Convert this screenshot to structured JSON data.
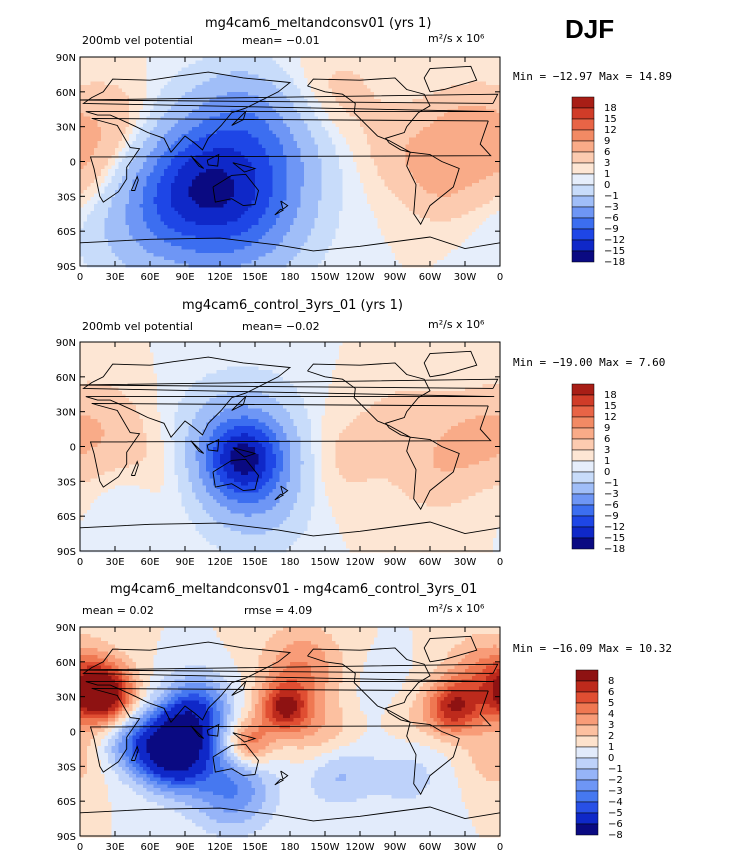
{
  "season": "DJF",
  "palette_full": [
    "#0a0a82",
    "#0f28c8",
    "#1e46e6",
    "#3c6ef0",
    "#6e96f5",
    "#a0bef8",
    "#c8dcfa",
    "#e6eefb",
    "#fde6d4",
    "#fccbb0",
    "#f9ab88",
    "#f28a64",
    "#e86446",
    "#d03c28",
    "#a81e16"
  ],
  "palette_diff": [
    "#0a0a82",
    "#0f28c8",
    "#2850e6",
    "#4678f0",
    "#6e96f5",
    "#96b4f8",
    "#bed2fa",
    "#e2ebfb",
    "#fde2cc",
    "#fcc0a0",
    "#f89c78",
    "#ef7852",
    "#e04e32",
    "#bd2a1c",
    "#8e1212"
  ],
  "colorbar_full_labels": [
    "18",
    "15",
    "12",
    "9",
    "6",
    "3",
    "1",
    "0",
    "-1",
    "-3",
    "-6",
    "-9",
    "-12",
    "-15",
    "-18"
  ],
  "colorbar_diff_labels": [
    "8",
    "6",
    "5",
    "4",
    "3",
    "2",
    "1",
    "0",
    "-1",
    "-2",
    "-3",
    "-4",
    "-5",
    "-6",
    "-8"
  ],
  "lat_labels": [
    "90N",
    "60N",
    "30N",
    "0",
    "30S",
    "60S",
    "90S"
  ],
  "lon_labels": [
    "0",
    "30E",
    "60E",
    "90E",
    "120E",
    "150E",
    "180",
    "150W",
    "120W",
    "90W",
    "60W",
    "30W",
    "0"
  ],
  "panels": [
    {
      "title": "mg4cam6_meltandconsv01 (yrs 1)",
      "left_label": "200mb vel potential",
      "center_label": "mean=  −0.01",
      "units": "m²/s x 10⁶",
      "stats": "Min = −12.97 Max =  14.89",
      "field": {
        "background": "#fccbb0",
        "blobs": [
          {
            "lon": 30,
            "lat": 25,
            "a": 3.0,
            "r": 30
          },
          {
            "lon": -30,
            "lat": 30,
            "a": 3.2,
            "r": 22
          },
          {
            "lon": -75,
            "lat": 10,
            "a": 2.5,
            "r": 25
          },
          {
            "lon": -50,
            "lat": -20,
            "a": 2.5,
            "r": 22
          },
          {
            "lon": -10,
            "lat": 0,
            "a": 2.0,
            "r": 25
          },
          {
            "lon": 15,
            "lat": -25,
            "a": 1.0,
            "r": 22
          },
          {
            "lon": -140,
            "lat": 55,
            "a": 1.5,
            "r": 30
          },
          {
            "lon": 110,
            "lat": -5,
            "a": -9.5,
            "r": 38
          },
          {
            "lon": 150,
            "lat": -40,
            "a": -6.0,
            "r": 35
          },
          {
            "lon": 85,
            "lat": -30,
            "a": -6.0,
            "r": 35
          },
          {
            "lon": 120,
            "lat": -60,
            "a": -4.0,
            "r": 40
          },
          {
            "lon": 170,
            "lat": 10,
            "a": -4.0,
            "r": 30
          },
          {
            "lon": 140,
            "lat": 45,
            "a": -4.0,
            "r": 28
          },
          {
            "lon": 50,
            "lat": -55,
            "a": -3.0,
            "r": 35
          }
        ]
      }
    },
    {
      "title": "mg4cam6_control_3yrs_01 (yrs 1)",
      "left_label": "200mb vel potential",
      "center_label": "mean=  −0.02",
      "units": "m²/s x 10⁶",
      "stats": "Min = −19.00 Max =   7.60",
      "field": {
        "background": "#fccbb0",
        "blobs": [
          {
            "lon": 15,
            "lat": 15,
            "a": 2.5,
            "r": 28
          },
          {
            "lon": -25,
            "lat": 5,
            "a": 2.5,
            "r": 25
          },
          {
            "lon": -80,
            "lat": 20,
            "a": 1.5,
            "r": 28
          },
          {
            "lon": -55,
            "lat": -25,
            "a": 1.8,
            "r": 22
          },
          {
            "lon": -140,
            "lat": -10,
            "a": 1.5,
            "r": 30
          },
          {
            "lon": 60,
            "lat": -25,
            "a": 1.5,
            "r": 25
          },
          {
            "lon": 140,
            "lat": -10,
            "a": -13.5,
            "r": 24
          },
          {
            "lon": 140,
            "lat": 5,
            "a": -5.0,
            "r": 35
          },
          {
            "lon": 150,
            "lat": -45,
            "a": -4.0,
            "r": 30
          },
          {
            "lon": 45,
            "lat": -40,
            "a": -1.5,
            "r": 22
          }
        ]
      }
    },
    {
      "title": "mg4cam6_meltandconsv01 - mg4cam6_control_3yrs_01",
      "left_label": "mean =    0.02",
      "center_label": "rmse =    4.09",
      "units": "m²/s x 10⁶",
      "stats": "Min = −16.09 Max =  10.32",
      "field": {
        "background": "#e2ebfb",
        "blobs": [
          {
            "lon": 20,
            "lat": 32,
            "a": 7.5,
            "r": 18
          },
          {
            "lon": -10,
            "lat": 45,
            "a": 3.5,
            "r": 25
          },
          {
            "lon": 175,
            "lat": 20,
            "a": 5.5,
            "r": 15
          },
          {
            "lon": 145,
            "lat": -10,
            "a": 4.0,
            "r": 14
          },
          {
            "lon": -40,
            "lat": 20,
            "a": 5.0,
            "r": 16
          },
          {
            "lon": -170,
            "lat": 55,
            "a": 3.0,
            "r": 25
          },
          {
            "lon": -150,
            "lat": -5,
            "a": 2.0,
            "r": 22
          },
          {
            "lon": -80,
            "lat": 10,
            "a": 1.5,
            "r": 22
          },
          {
            "lon": -5,
            "lat": -25,
            "a": 1.5,
            "r": 20
          },
          {
            "lon": 80,
            "lat": -15,
            "a": -11.0,
            "r": 22
          },
          {
            "lon": 100,
            "lat": 20,
            "a": -5.0,
            "r": 20
          },
          {
            "lon": 130,
            "lat": -50,
            "a": -4.0,
            "r": 25
          },
          {
            "lon": -140,
            "lat": -35,
            "a": -2.5,
            "r": 20
          },
          {
            "lon": -80,
            "lat": -35,
            "a": -1.5,
            "r": 25
          },
          {
            "lon": -100,
            "lat": 25,
            "a": -1.0,
            "r": 25
          },
          {
            "lon": 40,
            "lat": -10,
            "a": -2.5,
            "r": 18
          }
        ]
      }
    }
  ]
}
